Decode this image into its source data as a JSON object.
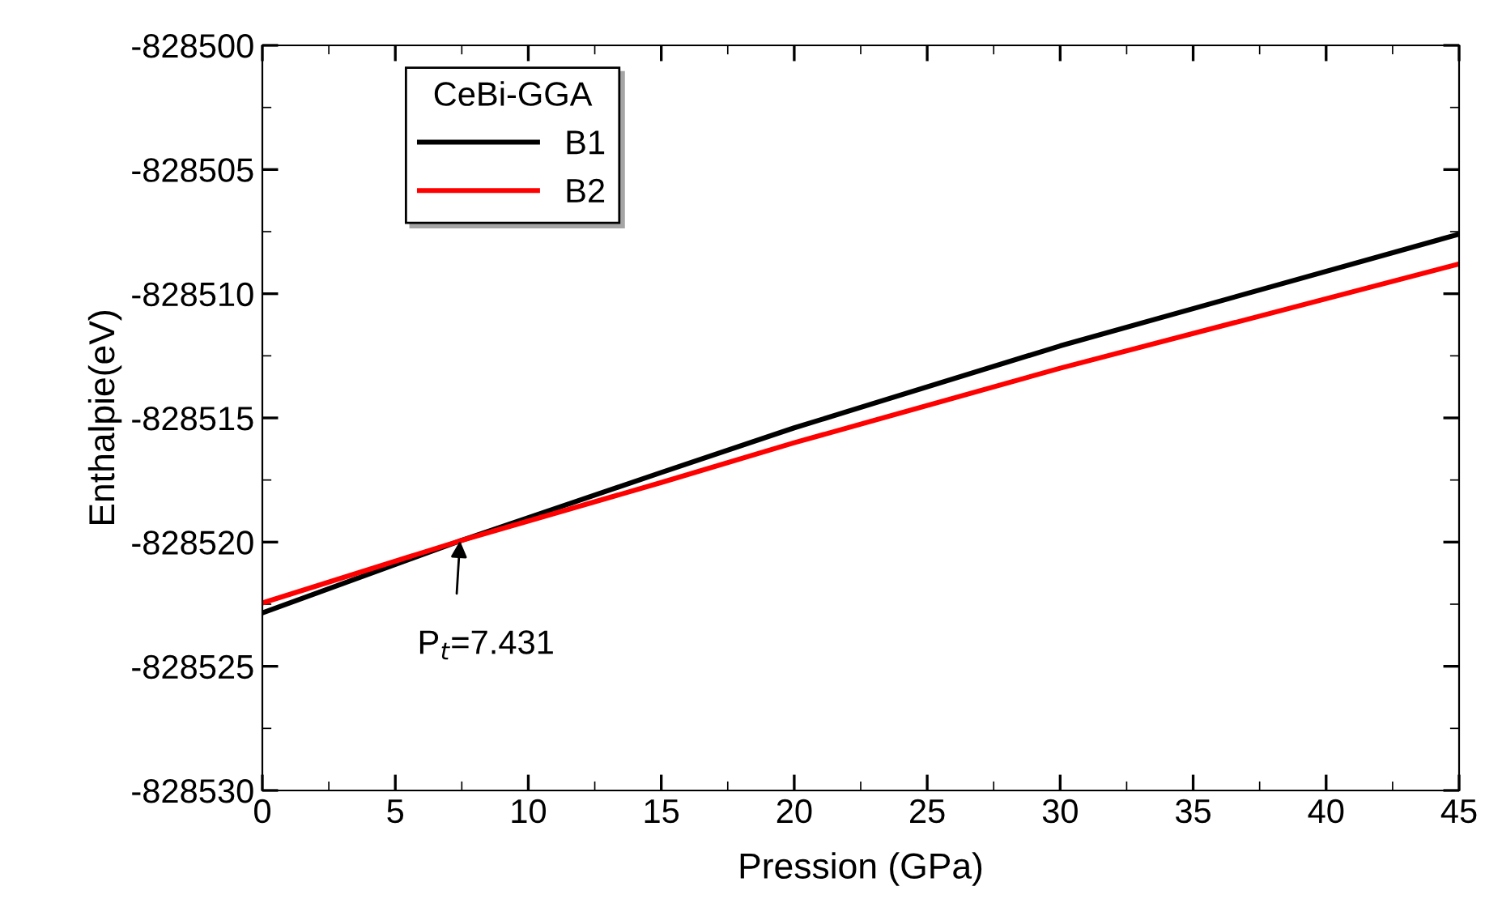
{
  "chart_data": {
    "type": "line",
    "xlabel": "Pression (GPa)",
    "ylabel": "Enthalpie(eV)",
    "legend_title": "CeBi-GGA",
    "x": [
      0,
      7.431,
      15,
      20,
      30,
      45
    ],
    "series": [
      {
        "name": "B1",
        "color": "#000000",
        "values": [
          -828522.85,
          -828519.95,
          -828517.2,
          -828515.4,
          -828512.1,
          -828507.6
        ]
      },
      {
        "name": "B2",
        "color": "#ff0000",
        "values": [
          -828522.45,
          -828519.95,
          -828517.6,
          -828516.0,
          -828513.0,
          -828508.8
        ]
      }
    ],
    "xlim": [
      0,
      45
    ],
    "xticks": [
      0,
      5,
      10,
      15,
      20,
      25,
      30,
      35,
      40,
      45
    ],
    "ylim": [
      -828530,
      -828500
    ],
    "yticks": [
      -828530,
      -828525,
      -828520,
      -828515,
      -828510,
      -828505,
      -828500
    ],
    "annotations": [
      {
        "text": "P$_{t}$=7.431",
        "x": 7.431,
        "y": -828519.95
      }
    ],
    "legend": "top left",
    "grid": false,
    "line_style": "solid",
    "marker": "none"
  }
}
